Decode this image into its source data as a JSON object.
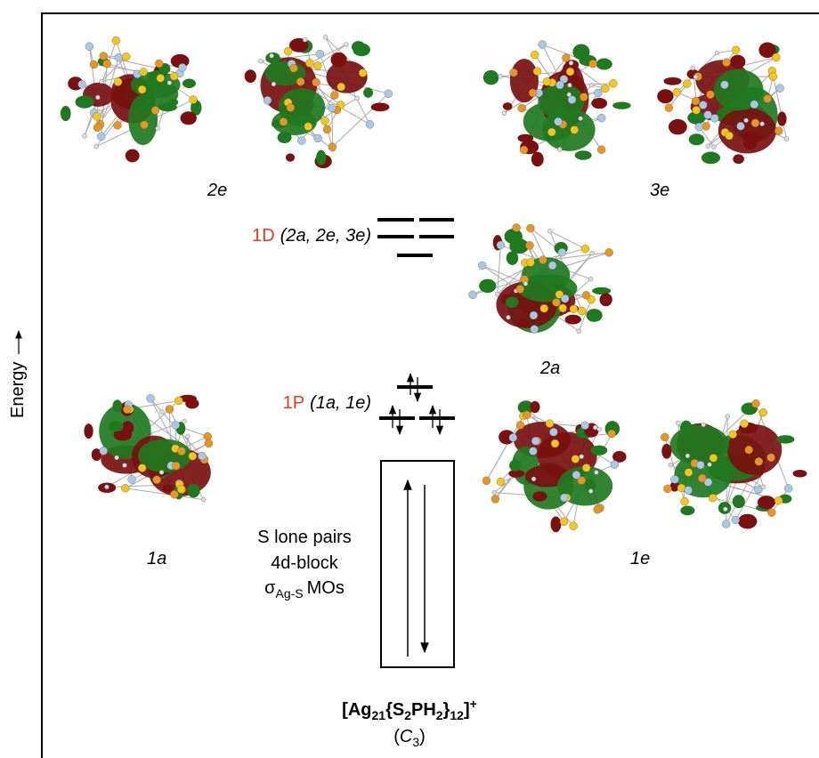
{
  "energy_label": "Energy",
  "levels": [
    {
      "name": "1D",
      "orbitals": "(2a, 2e, 3e)"
    },
    {
      "name": "1P",
      "orbitals": "(1a, 1e)"
    }
  ],
  "orbital_labels": {
    "top_left": "2e",
    "top_right": "3e",
    "middle": "2a",
    "bottom_left": "1a",
    "bottom_right": "1e"
  },
  "core_block": {
    "lines": [
      "S lone pairs",
      "4d-block"
    ],
    "sigma": {
      "symbol": "σ",
      "subscript": "Ag-S",
      "text": "MOs"
    }
  },
  "molecule": {
    "formula": [
      "[Ag",
      "21",
      "{S",
      "2",
      "PH",
      "2",
      "}",
      "12",
      "]",
      "+"
    ],
    "point_group": [
      "(",
      "C",
      "3",
      ")"
    ]
  }
}
